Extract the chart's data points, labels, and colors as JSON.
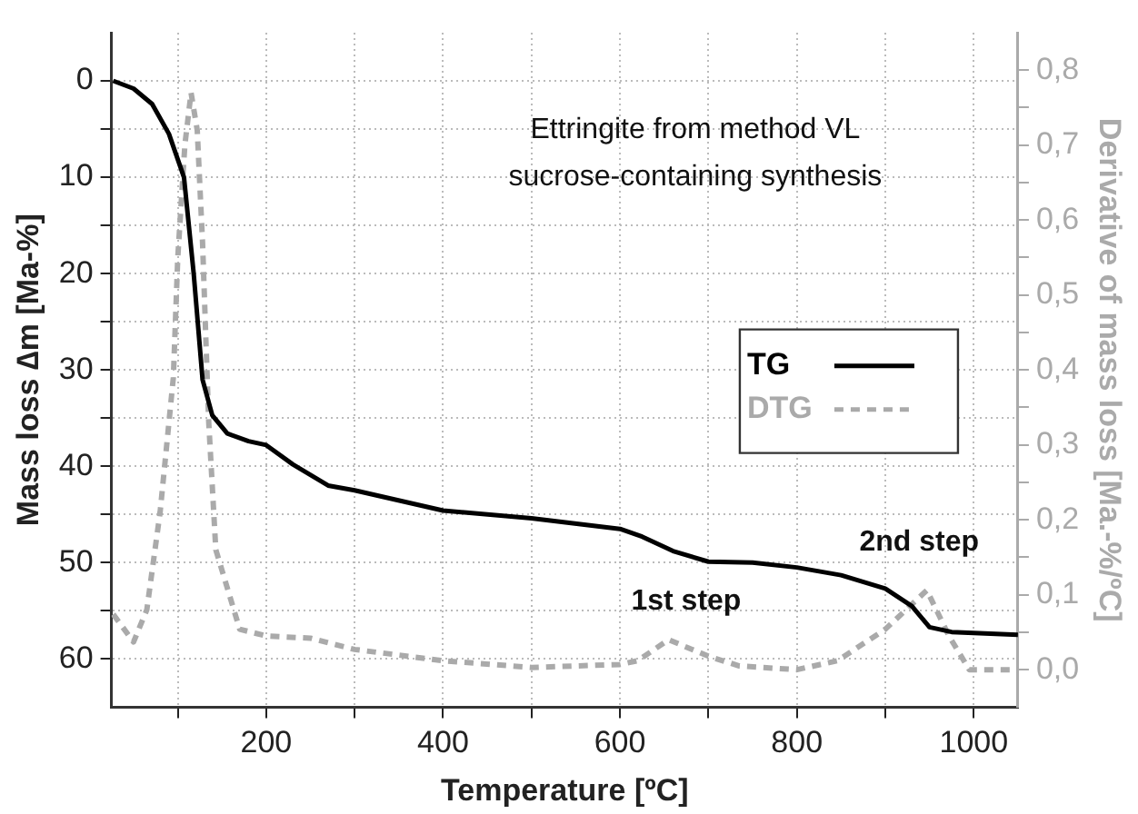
{
  "chart_data": {
    "type": "line",
    "xlabel": "Temperature [ºC]",
    "ylabel": "Mass loss ∆m [Ma-%]",
    "y2label": "Derivative of mass loss [Ma.-%/ºC]",
    "annotations": [
      "Ettringite from method VL\nsucrose-containing synthesis",
      "1st step",
      "2nd step"
    ],
    "series": [
      {
        "name": "TG",
        "color": "#000000",
        "line_style": "solid",
        "x": [
          27,
          50,
          71,
          90,
          107,
          118,
          128,
          139,
          156,
          180,
          200,
          230,
          270,
          300,
          400,
          500,
          600,
          625,
          660,
          700,
          750,
          800,
          850,
          900,
          930,
          950,
          975,
          1050
        ],
        "values": [
          0,
          0.8,
          2.4,
          5.5,
          10,
          20,
          31,
          34.7,
          36.6,
          37.4,
          37.8,
          39.8,
          42,
          42.5,
          44.6,
          45.4,
          46.5,
          47.3,
          48.8,
          49.9,
          50,
          50.5,
          51.3,
          52.7,
          54.5,
          56.7,
          57.2,
          57.5
        ]
      },
      {
        "name": "DTG",
        "color": "#aaaaaa",
        "line_style": "dashed",
        "axis": "y2",
        "x": [
          27,
          50,
          65,
          80,
          95,
          100,
          108,
          115,
          122,
          128,
          135,
          143,
          170,
          200,
          250,
          300,
          400,
          500,
          600,
          620,
          655,
          700,
          735,
          800,
          846,
          900,
          947,
          972,
          995,
          1050
        ],
        "values": [
          0.074,
          0.037,
          0.08,
          0.21,
          0.39,
          0.55,
          0.7,
          0.77,
          0.72,
          0.57,
          0.33,
          0.16,
          0.054,
          0.045,
          0.042,
          0.027,
          0.012,
          0.003,
          0.007,
          0.012,
          0.04,
          0.018,
          0.005,
          0,
          0.012,
          0.054,
          0.106,
          0.045,
          0,
          0
        ]
      }
    ],
    "xlim": [
      25,
      1050
    ],
    "xticks": [
      {
        "value": 100,
        "label": null
      },
      200,
      {
        "value": 300,
        "label": null
      },
      400,
      {
        "value": 500,
        "label": null
      },
      600,
      {
        "value": 700,
        "label": null
      },
      800,
      {
        "value": 900,
        "label": null
      },
      1000
    ],
    "ylim": [
      65,
      -5
    ],
    "yticks": [
      0,
      {
        "value": 5,
        "label": null
      },
      10,
      {
        "value": 15,
        "label": null
      },
      20,
      {
        "value": 25,
        "label": null
      },
      30,
      {
        "value": 35,
        "label": null
      },
      40,
      {
        "value": 45,
        "label": null
      },
      50,
      {
        "value": 55,
        "label": null
      },
      60
    ],
    "y2lim": [
      -0.05,
      0.85
    ],
    "y2ticks": [
      {
        "value": 0,
        "label": "0,0"
      },
      {
        "value": 0.05,
        "label": null
      },
      {
        "value": 0.1,
        "label": "0,1"
      },
      {
        "value": 0.15,
        "label": null
      },
      {
        "value": 0.2,
        "label": "0,2"
      },
      {
        "value": 0.25,
        "label": null
      },
      {
        "value": 0.3,
        "label": "0,3"
      },
      {
        "value": 0.35,
        "label": null
      },
      {
        "value": 0.4,
        "label": "0,4"
      },
      {
        "value": 0.45,
        "label": null
      },
      {
        "value": 0.5,
        "label": "0,5"
      },
      {
        "value": 0.55,
        "label": null
      },
      {
        "value": 0.6,
        "label": "0,6"
      },
      {
        "value": 0.65,
        "label": null
      },
      {
        "value": 0.7,
        "label": "0,7"
      },
      {
        "value": 0.75,
        "label": null
      },
      {
        "value": 0.8,
        "label": "0,8"
      }
    ],
    "grid": true,
    "legend": "right",
    "marker": "none"
  }
}
